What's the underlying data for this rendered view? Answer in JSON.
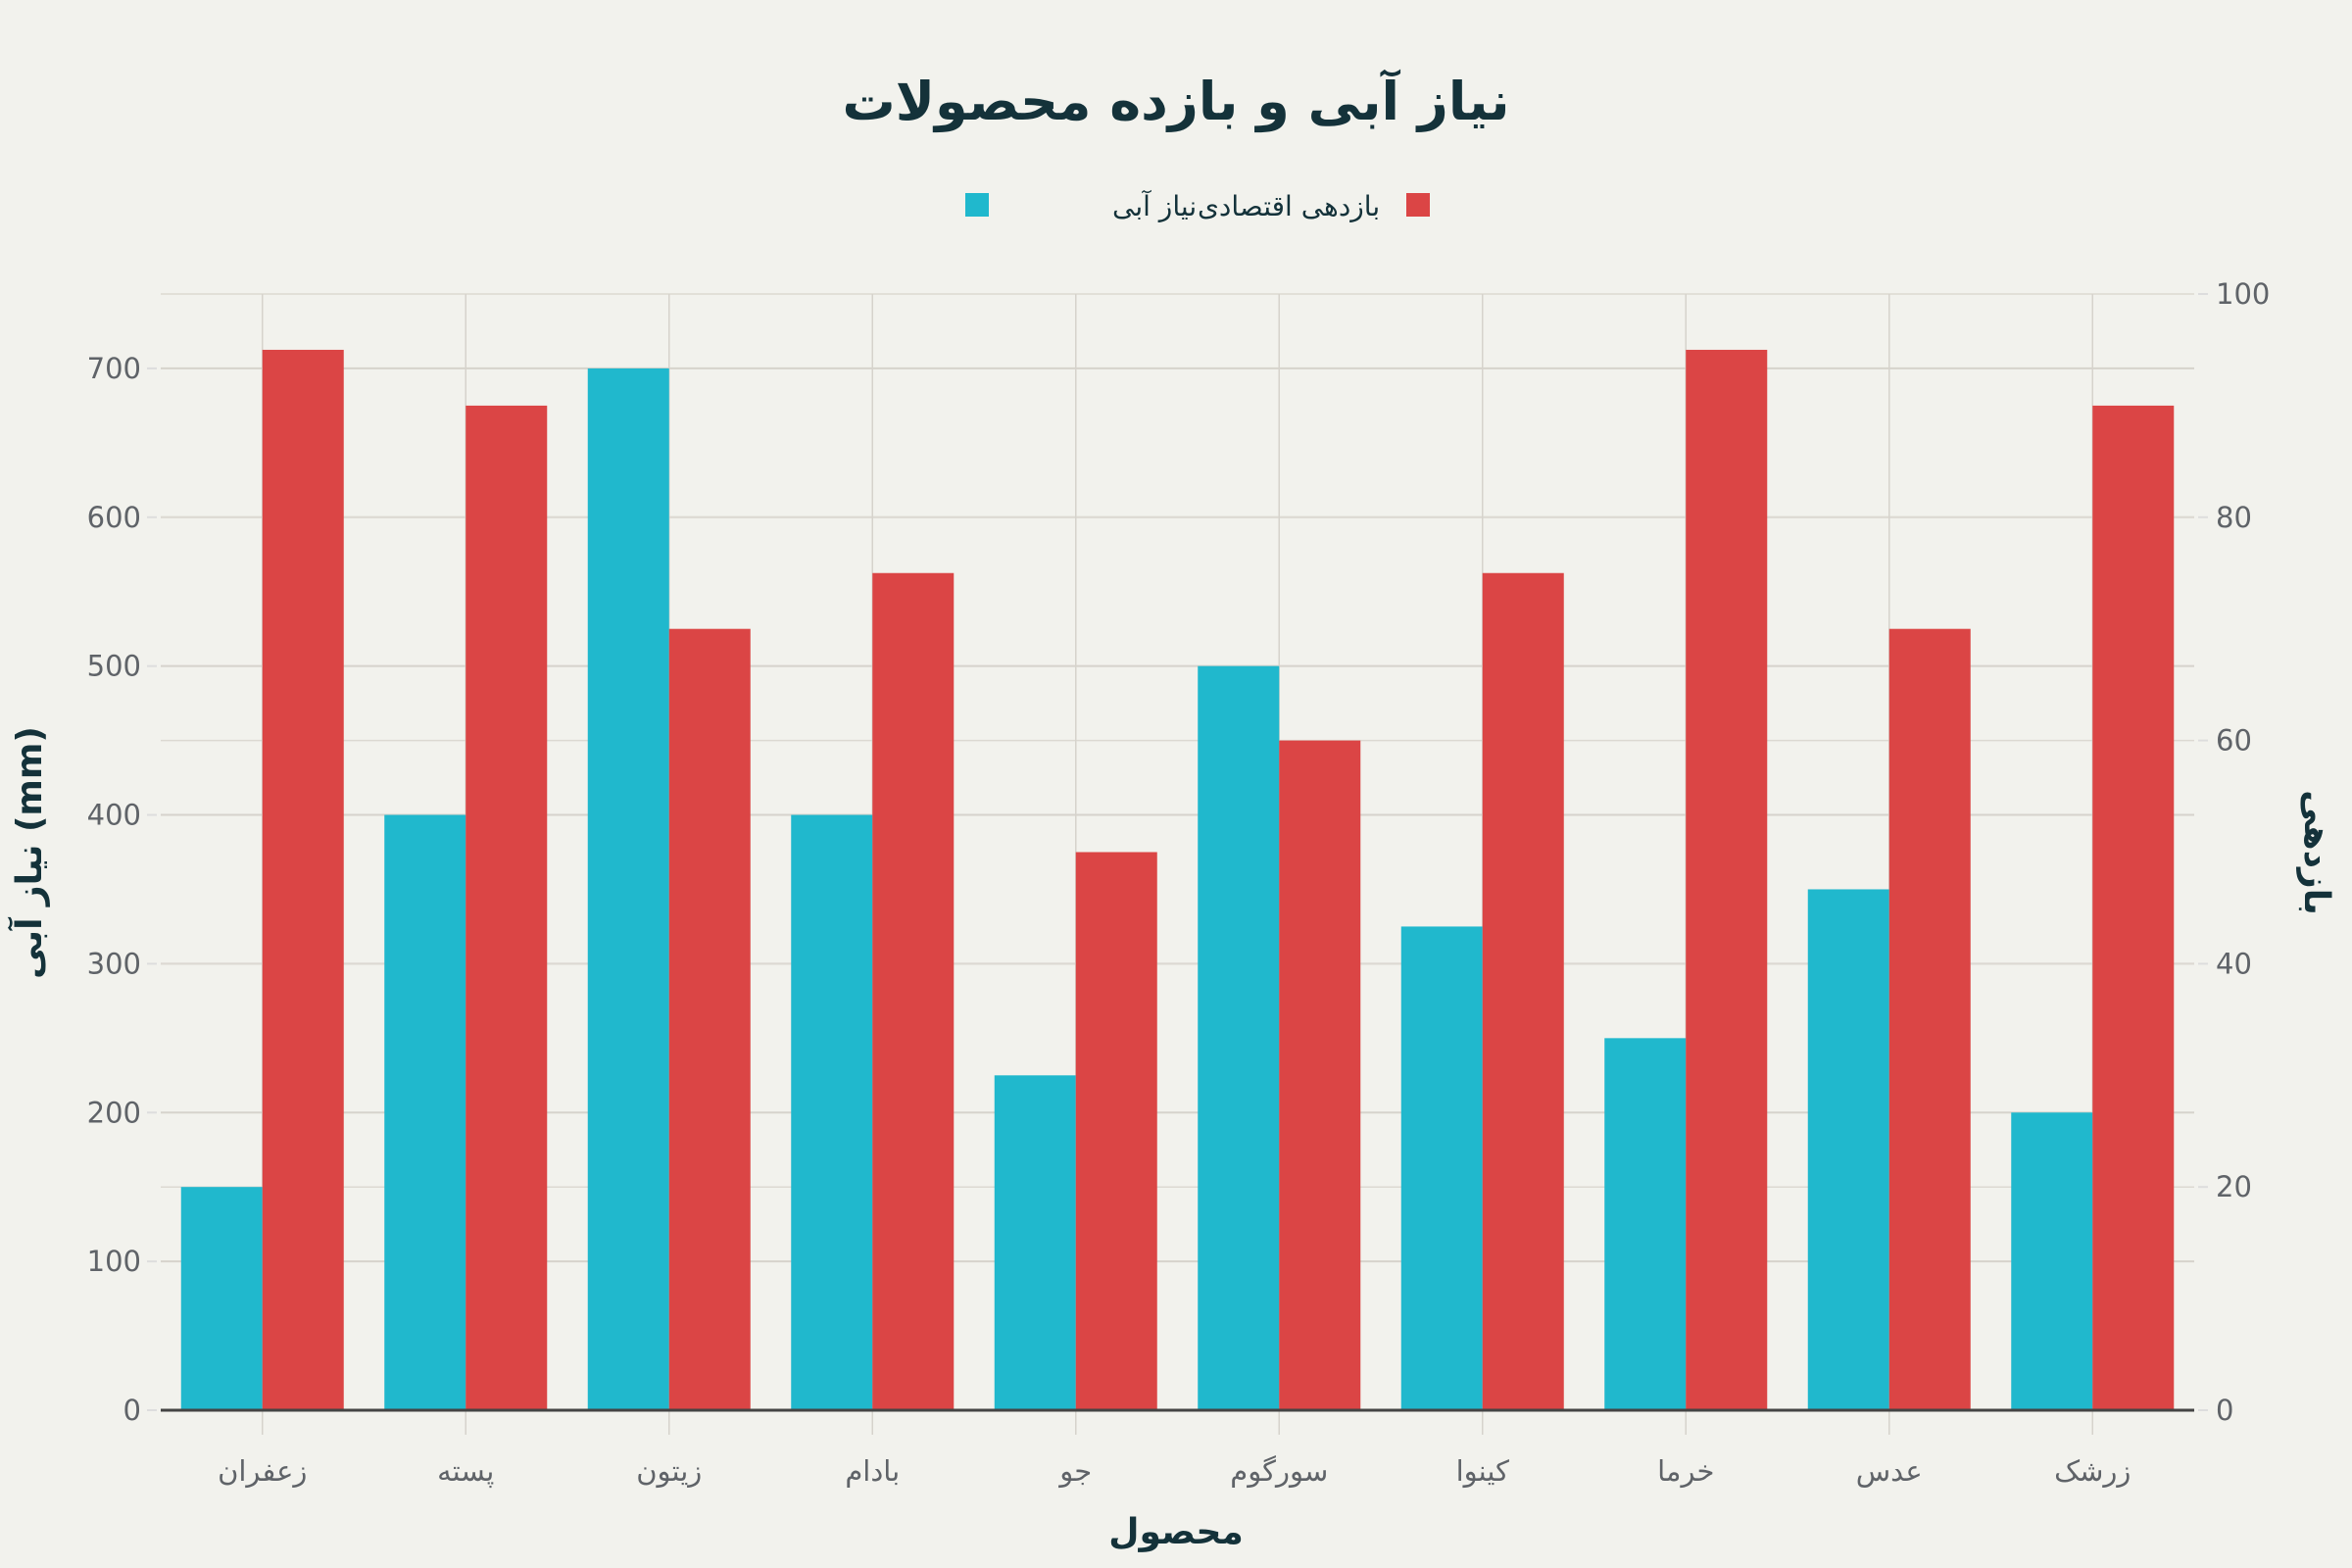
{
  "chart_data": {
    "type": "bar",
    "title": "نیاز آبی و بازده محصولات",
    "xlabel": "محصول",
    "ylabel": "نیاز آبی (mm)",
    "y2label": "بازدهی",
    "categories": [
      "زعفران",
      "پسته",
      "زیتون",
      "بادام",
      "جو",
      "سورگوم",
      "کینوا",
      "خرما",
      "عدس",
      "زرشک"
    ],
    "series": [
      {
        "name": "نیاز آبی",
        "axis": "left",
        "color": "#20b8cd",
        "values": [
          150,
          400,
          700,
          400,
          225,
          500,
          325,
          250,
          350,
          200
        ]
      },
      {
        "name": "بازدهی اقتصادی",
        "axis": "right",
        "color": "#db4545",
        "values": [
          95,
          90,
          70,
          75,
          50,
          60,
          75,
          95,
          70,
          90
        ]
      }
    ],
    "ylim": [
      0,
      750
    ],
    "y2lim": [
      0,
      100
    ],
    "yticks": [
      0,
      100,
      200,
      300,
      400,
      500,
      600,
      700
    ],
    "y2ticks": [
      0,
      20,
      40,
      60,
      80,
      100
    ],
    "grid": true,
    "legend_position": "top-center"
  }
}
